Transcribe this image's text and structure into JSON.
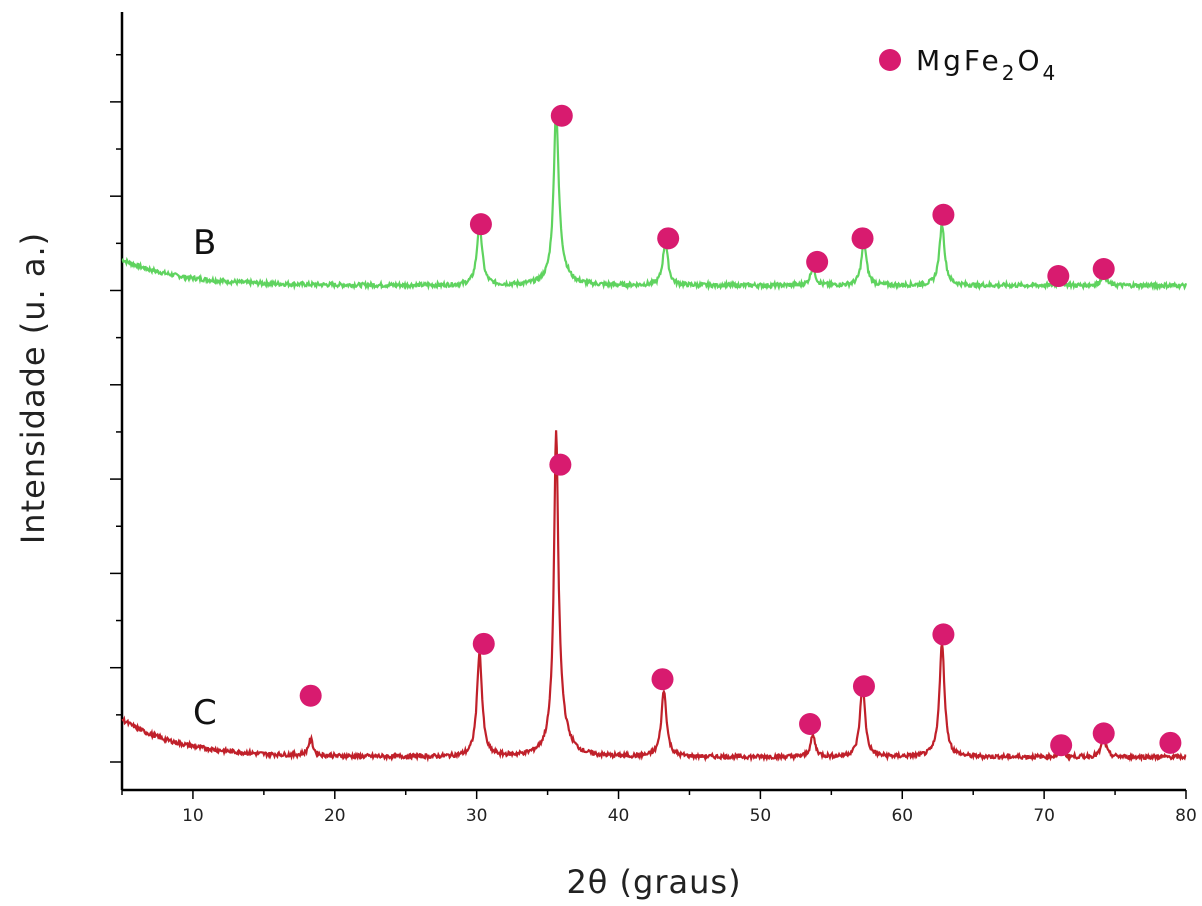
{
  "chart_data": {
    "type": "line",
    "title": "",
    "xlabel": "2θ (graus)",
    "ylabel": "Intensidade (u. a.)",
    "xlim": [
      5,
      80
    ],
    "xticks": [
      10,
      20,
      30,
      40,
      50,
      60,
      70,
      80
    ],
    "y_tick_labels_shown": false,
    "ylim": [
      0,
      16.5
    ],
    "grid": false,
    "legend": {
      "placement": "top-right",
      "marker_color": "#d81b6f",
      "label_main": "MgFe",
      "sub1": "2",
      "mid": "O",
      "sub2": "4"
    },
    "series": [
      {
        "name": "B",
        "color": "#5fd35f",
        "baseline": 10.7,
        "background_start": 0.55,
        "background_decay": 4,
        "peaks": [
          {
            "x": 30.2,
            "h": 1.3,
            "w": 0.22
          },
          {
            "x": 35.6,
            "h": 3.4,
            "w": 0.2
          },
          {
            "x": 35.8,
            "h": 0.4,
            "w": 0.6
          },
          {
            "x": 43.3,
            "h": 0.9,
            "w": 0.22
          },
          {
            "x": 53.7,
            "h": 0.4,
            "w": 0.2
          },
          {
            "x": 57.3,
            "h": 0.9,
            "w": 0.22
          },
          {
            "x": 62.8,
            "h": 1.3,
            "w": 0.22
          },
          {
            "x": 71.2,
            "h": 0.1,
            "w": 0.2
          },
          {
            "x": 74.2,
            "h": 0.25,
            "w": 0.2
          }
        ],
        "markers": [
          {
            "x": 30.3,
            "y": 12.0
          },
          {
            "x": 36.0,
            "y": 14.3
          },
          {
            "x": 43.5,
            "y": 11.7
          },
          {
            "x": 54.0,
            "y": 11.2
          },
          {
            "x": 57.2,
            "y": 11.7
          },
          {
            "x": 62.9,
            "y": 12.2
          },
          {
            "x": 71.0,
            "y": 10.9
          },
          {
            "x": 74.2,
            "y": 11.05
          }
        ]
      },
      {
        "name": "C",
        "color": "#c0202a",
        "baseline": 0.7,
        "background_start": 0.8,
        "background_decay": 4,
        "peaks": [
          {
            "x": 18.3,
            "h": 0.35,
            "w": 0.2
          },
          {
            "x": 30.2,
            "h": 2.2,
            "w": 0.22
          },
          {
            "x": 35.6,
            "h": 6.2,
            "w": 0.18
          },
          {
            "x": 35.8,
            "h": 0.8,
            "w": 0.6
          },
          {
            "x": 43.2,
            "h": 1.4,
            "w": 0.22
          },
          {
            "x": 53.7,
            "h": 0.45,
            "w": 0.2
          },
          {
            "x": 57.2,
            "h": 1.5,
            "w": 0.22
          },
          {
            "x": 62.8,
            "h": 2.4,
            "w": 0.22
          },
          {
            "x": 71.2,
            "h": 0.15,
            "w": 0.2
          },
          {
            "x": 74.2,
            "h": 0.4,
            "w": 0.2
          }
        ],
        "markers": [
          {
            "x": 18.3,
            "y": 2.0
          },
          {
            "x": 30.5,
            "y": 3.1
          },
          {
            "x": 35.9,
            "y": 6.9
          },
          {
            "x": 43.1,
            "y": 2.35
          },
          {
            "x": 53.5,
            "y": 1.4
          },
          {
            "x": 57.3,
            "y": 2.2
          },
          {
            "x": 62.9,
            "y": 3.3
          },
          {
            "x": 71.2,
            "y": 0.95
          },
          {
            "x": 74.2,
            "y": 1.2
          },
          {
            "x": 78.9,
            "y": 1.0
          }
        ]
      }
    ]
  }
}
